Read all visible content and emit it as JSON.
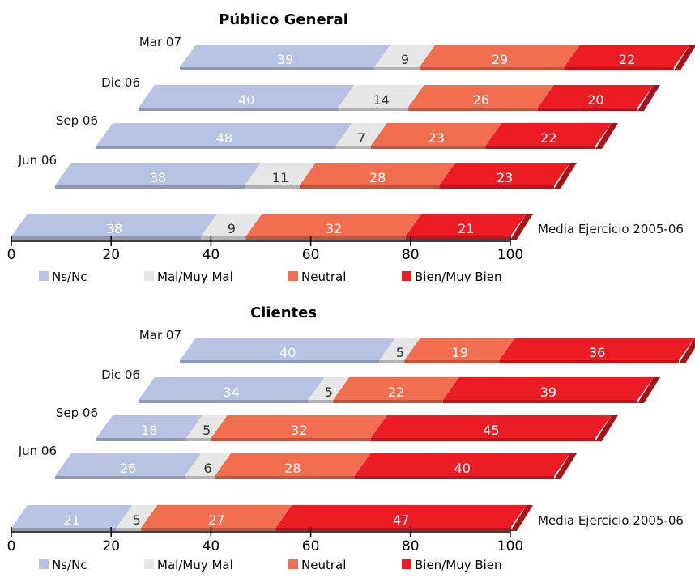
{
  "chart_data": [
    {
      "type": "bar",
      "orientation": "horizontal",
      "stacked": true,
      "title": "Público General",
      "categories": [
        "Mar 07",
        "Dic 06",
        "Sep 06",
        "Jun 06",
        "Media Ejercicio 2005-06"
      ],
      "series": [
        {
          "name": "Ns/Nc",
          "color": "#b8c2e2",
          "values": [
            39,
            40,
            48,
            38,
            38
          ]
        },
        {
          "name": "Mal/Muy Mal",
          "color": "#e6e6e6",
          "values": [
            9,
            14,
            7,
            11,
            9
          ]
        },
        {
          "name": "Neutral",
          "color": "#f26e50",
          "values": [
            29,
            26,
            23,
            28,
            32
          ]
        },
        {
          "name": "Bien/Muy Bien",
          "color": "#ec1c24",
          "values": [
            22,
            20,
            22,
            23,
            21
          ]
        }
      ],
      "xlim": [
        0,
        100
      ],
      "xticks": [
        "0",
        "20",
        "40",
        "60",
        "80",
        "100"
      ],
      "legend": "bottom"
    },
    {
      "type": "bar",
      "orientation": "horizontal",
      "stacked": true,
      "title": "Clientes",
      "categories": [
        "Mar 07",
        "Dic 06",
        "Sep 06",
        "Jun 06",
        "Media Ejercicio 2005-06"
      ],
      "series": [
        {
          "name": "Ns/Nc",
          "color": "#b8c2e2",
          "values": [
            40,
            34,
            18,
            26,
            21
          ]
        },
        {
          "name": "Mal/Muy Mal",
          "color": "#e6e6e6",
          "values": [
            5,
            5,
            5,
            6,
            5
          ]
        },
        {
          "name": "Neutral",
          "color": "#f26e50",
          "values": [
            19,
            22,
            32,
            28,
            27
          ]
        },
        {
          "name": "Bien/Muy Bien",
          "color": "#ec1c24",
          "values": [
            36,
            39,
            45,
            40,
            47
          ]
        }
      ],
      "xlim": [
        0,
        100
      ],
      "xticks": [
        "0",
        "20",
        "40",
        "60",
        "80",
        "100"
      ],
      "legend": "bottom"
    }
  ]
}
